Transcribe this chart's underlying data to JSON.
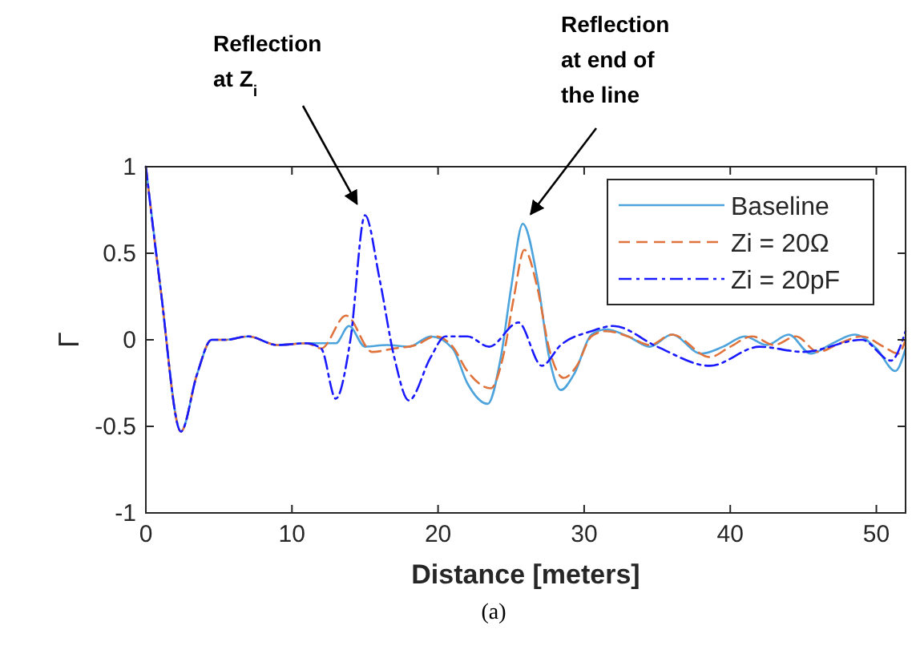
{
  "chart_data": {
    "type": "line",
    "xlabel": "Distance [meters]",
    "ylabel": "Γ",
    "xlim": [
      0,
      52
    ],
    "ylim": [
      -1,
      1
    ],
    "xticks": [
      0,
      10,
      20,
      30,
      40,
      50
    ],
    "yticks": [
      -1,
      -0.5,
      0,
      0.5,
      1
    ],
    "grid": false,
    "legend": "top right",
    "marker": "none",
    "series": [
      {
        "name": "Baseline",
        "color": "#4da3dc",
        "line_style": "solid",
        "x": [
          0,
          1,
          2.4,
          3.5,
          4.5,
          5.5,
          7,
          9,
          11,
          13,
          13.9,
          15,
          16.5,
          18,
          19.5,
          21,
          22,
          23.4,
          24.3,
          25,
          25.8,
          26.8,
          27.6,
          28.4,
          29.3,
          30.5,
          31.5,
          33,
          34.5,
          36,
          38,
          39.5,
          41,
          42.5,
          44,
          45.5,
          47,
          48.5,
          50,
          51.3,
          52
        ],
        "values": [
          1,
          0.3,
          -0.53,
          -0.2,
          0,
          0,
          0.02,
          -0.03,
          -0.02,
          -0.02,
          0.08,
          -0.04,
          -0.03,
          -0.04,
          0.02,
          -0.05,
          -0.25,
          -0.37,
          -0.1,
          0.3,
          0.67,
          0.35,
          -0.1,
          -0.29,
          -0.2,
          0.03,
          0.06,
          0.02,
          -0.04,
          0.03,
          -0.08,
          -0.04,
          0.02,
          -0.03,
          0.03,
          -0.08,
          -0.02,
          0.03,
          -0.05,
          -0.18,
          -0.05
        ]
      },
      {
        "name": "Zi = 20Ω",
        "color": "#e0733c",
        "line_style": "dashed",
        "x": [
          0,
          1,
          2.4,
          3.5,
          4.5,
          5.5,
          7,
          9,
          11,
          12,
          13.7,
          15.5,
          17,
          18.5,
          19.8,
          21,
          22,
          23.6,
          24.5,
          25.2,
          25.9,
          26.8,
          27.6,
          28.6,
          29.5,
          30.5,
          31.5,
          33,
          34.5,
          36,
          38.6,
          40,
          41.5,
          43,
          44.5,
          46,
          47.5,
          49,
          50.5,
          51.5,
          52
        ],
        "values": [
          1,
          0.3,
          -0.53,
          -0.2,
          0,
          0,
          0.02,
          -0.03,
          -0.02,
          -0.05,
          0.14,
          -0.07,
          -0.05,
          -0.03,
          0.02,
          -0.04,
          -0.18,
          -0.28,
          -0.08,
          0.25,
          0.52,
          0.3,
          -0.05,
          -0.22,
          -0.15,
          0.02,
          0.05,
          0.02,
          -0.03,
          0.03,
          -0.1,
          -0.04,
          0.02,
          -0.03,
          0.02,
          -0.07,
          -0.02,
          0.02,
          -0.04,
          -0.08,
          0
        ]
      },
      {
        "name": "Zi = 20pF",
        "color": "#1a1aff",
        "line_style": "dashdot",
        "x": [
          0,
          1,
          2.4,
          3.5,
          4.5,
          5.5,
          7,
          9,
          11,
          12,
          13,
          14,
          15,
          16,
          17,
          18,
          19.5,
          20.5,
          22,
          23.5,
          25.5,
          27.1,
          28.4,
          30.5,
          32,
          35,
          38.6,
          42,
          45,
          49,
          51,
          52
        ],
        "values": [
          1,
          0.3,
          -0.53,
          -0.2,
          0,
          0,
          0.02,
          -0.03,
          -0.02,
          -0.05,
          -0.34,
          0,
          0.72,
          0.35,
          -0.1,
          -0.35,
          -0.1,
          0.02,
          0.02,
          -0.04,
          0.1,
          -0.15,
          -0.03,
          0.05,
          0.08,
          -0.04,
          -0.15,
          -0.04,
          -0.07,
          0,
          -0.12,
          0.05
        ]
      }
    ],
    "annotations": [
      {
        "text": "Reflection\nat Z$_{i}$",
        "x": 15,
        "y": 0.72
      },
      {
        "text": "Reflection\nat end of\nthe line",
        "x": 25.9,
        "y": 0.67
      },
      "(a)"
    ]
  }
}
